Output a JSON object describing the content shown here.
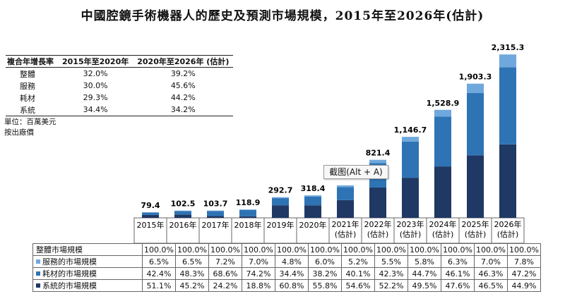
{
  "title": "中國腔鏡手術機器人的歷史及預測市場規模，2015年至2026年(估計)",
  "cagr_table": {
    "headers": [
      "複合年增長率",
      "2015年至2020年",
      "2020年至2026年 (估計)"
    ],
    "rows": [
      {
        "label": "整體",
        "a": "32.0%",
        "b": "39.2%"
      },
      {
        "label": "服務",
        "a": "30.0%",
        "b": "45.6%"
      },
      {
        "label": "耗材",
        "a": "29.3%",
        "b": "44.2%"
      },
      {
        "label": "系統",
        "a": "34.4%",
        "b": "34.2%"
      }
    ]
  },
  "unit_lines": [
    "單位：百萬美元",
    "按出廠價"
  ],
  "tooltip": "截图(Alt + A)",
  "colors": {
    "system": "#1f3864",
    "consumables": "#2e74b5",
    "service": "#6fa8dc"
  },
  "chart_data": {
    "type": "bar",
    "stacked": true,
    "categories": [
      "2015年",
      "2016年",
      "2017年",
      "2018年",
      "2019年",
      "2020年",
      "2021年(估計)",
      "2022年(估計)",
      "2023年(估計)",
      "2024年(估計)",
      "2025年(估計)",
      "2026年(估計)"
    ],
    "year_lines": [
      [
        "2015年"
      ],
      [
        "2016年"
      ],
      [
        "2017年"
      ],
      [
        "2018年"
      ],
      [
        "2019年"
      ],
      [
        "2020年"
      ],
      [
        "2021年",
        "(估計)"
      ],
      [
        "2022年",
        "(估計)"
      ],
      [
        "2023年",
        "(估計)"
      ],
      [
        "2024年",
        "(估計)"
      ],
      [
        "2025年",
        "(估計)"
      ],
      [
        "2026年",
        "(估計)"
      ]
    ],
    "totals": [
      79.4,
      102.5,
      103.7,
      118.9,
      292.7,
      318.4,
      null,
      821.4,
      1146.7,
      1528.9,
      1903.3,
      2315.3
    ],
    "total_labels": [
      "79.4",
      "102.5",
      "103.7",
      "118.9",
      "292.7",
      "318.4",
      "",
      "821.4",
      "1,146.7",
      "1,528.9",
      "1,903.3",
      "2,315.3"
    ],
    "est_total_2021": 460,
    "series": [
      {
        "name": "系統的市場規模",
        "key": "system",
        "pct": [
          51.1,
          45.2,
          24.2,
          18.8,
          60.8,
          55.8,
          54.6,
          52.2,
          49.5,
          47.6,
          46.5,
          44.9
        ]
      },
      {
        "name": "耗材的市場規模",
        "key": "consumables",
        "pct": [
          42.4,
          48.3,
          68.6,
          74.2,
          34.4,
          38.2,
          40.1,
          42.3,
          44.7,
          46.1,
          46.3,
          47.2
        ]
      },
      {
        "name": "服務的市場規模",
        "key": "service",
        "pct": [
          6.5,
          6.5,
          7.2,
          7.0,
          4.8,
          6.0,
          5.2,
          5.5,
          5.8,
          6.3,
          7.0,
          7.8
        ]
      }
    ]
  },
  "data_table": {
    "rows": [
      {
        "label": "整體市場規模",
        "swatch": "",
        "values": [
          "100.0%",
          "100.0%",
          "100.0%",
          "100.0%",
          "100.0%",
          "100.0%",
          "100.0%",
          "100.0%",
          "100.0%",
          "100.0%",
          "100.0%",
          "100.0%"
        ]
      },
      {
        "label": "服務的市場規模",
        "swatch": "service",
        "values": [
          "6.5%",
          "6.5%",
          "7.2%",
          "7.0%",
          "4.8%",
          "6.0%",
          "5.2%",
          "5.5%",
          "5.8%",
          "6.3%",
          "7.0%",
          "7.8%"
        ]
      },
      {
        "label": "耗材的市場規模",
        "swatch": "consumables",
        "values": [
          "42.4%",
          "48.3%",
          "68.6%",
          "74.2%",
          "34.4%",
          "38.2%",
          "40.1%",
          "42.3%",
          "44.7%",
          "46.1%",
          "46.3%",
          "47.2%"
        ]
      },
      {
        "label": "系統的市場規模",
        "swatch": "system",
        "values": [
          "51.1%",
          "45.2%",
          "24.2%",
          "18.8%",
          "60.8%",
          "55.8%",
          "54.6%",
          "52.2%",
          "49.5%",
          "47.6%",
          "46.5%",
          "44.9%"
        ]
      }
    ]
  }
}
